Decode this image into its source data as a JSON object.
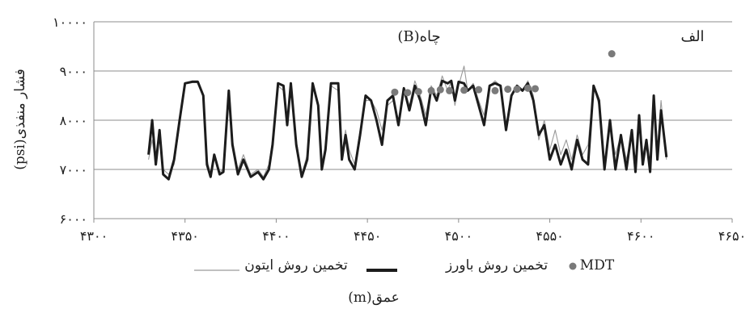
{
  "chart_data": {
    "type": "line",
    "title": "",
    "annotations": {
      "well": "چاه(B)",
      "panel": "الف"
    },
    "xlabel": "عمق(m)",
    "ylabel": "فشار منفذی(psi)",
    "xlim": [
      4300,
      4650
    ],
    "ylim": [
      6000,
      10000
    ],
    "x_ticks": [
      4300,
      4350,
      4400,
      4450,
      4500,
      4550,
      4600,
      4650
    ],
    "x_tick_labels": [
      "۴۳۰۰",
      "۴۳۵۰",
      "۴۴۰۰",
      "۴۴۵۰",
      "۴۵۰۰",
      "۴۵۵۰",
      "۴۶۰۰",
      "۴۶۵۰"
    ],
    "y_ticks": [
      6000,
      7000,
      8000,
      9000,
      10000
    ],
    "y_tick_labels": [
      "۶۰۰۰",
      "۷۰۰۰",
      "۸۰۰۰",
      "۹۰۰۰",
      "۱۰۰۰۰"
    ],
    "grid": true,
    "legend_position": "bottom",
    "series": [
      {
        "name": "تخمین روش ایتون",
        "kind": "line",
        "color": "#9a9a9a",
        "points": [
          [
            4330,
            7200
          ],
          [
            4332,
            7600
          ],
          [
            4334,
            7100
          ],
          [
            4336,
            7800
          ],
          [
            4338,
            7000
          ],
          [
            4341,
            6900
          ],
          [
            4344,
            7100
          ],
          [
            4347,
            7900
          ],
          [
            4350,
            8750
          ],
          [
            4354,
            8800
          ],
          [
            4357,
            8800
          ],
          [
            4360,
            8500
          ],
          [
            4362,
            7200
          ],
          [
            4364,
            6900
          ],
          [
            4366,
            7300
          ],
          [
            4369,
            6950
          ],
          [
            4371,
            7000
          ],
          [
            4374,
            8500
          ],
          [
            4376,
            7600
          ],
          [
            4379,
            7000
          ],
          [
            4382,
            7300
          ],
          [
            4386,
            6900
          ],
          [
            4390,
            7000
          ],
          [
            4393,
            6850
          ],
          [
            4396,
            7100
          ],
          [
            4398,
            7600
          ],
          [
            4401,
            8700
          ],
          [
            4404,
            8600
          ],
          [
            4406,
            8000
          ],
          [
            4408,
            8700
          ],
          [
            4411,
            7600
          ],
          [
            4414,
            6900
          ],
          [
            4417,
            7300
          ],
          [
            4420,
            8700
          ],
          [
            4423,
            8300
          ],
          [
            4425,
            7100
          ],
          [
            4427,
            7500
          ],
          [
            4430,
            8700
          ],
          [
            4434,
            8600
          ],
          [
            4436,
            7300
          ],
          [
            4438,
            7800
          ],
          [
            4440,
            7400
          ],
          [
            4443,
            7100
          ],
          [
            4446,
            7800
          ],
          [
            4449,
            8400
          ],
          [
            4452,
            8400
          ],
          [
            4455,
            8200
          ],
          [
            4458,
            7800
          ],
          [
            4461,
            8300
          ],
          [
            4464,
            8400
          ],
          [
            4467,
            8000
          ],
          [
            4470,
            8600
          ],
          [
            4473,
            8300
          ],
          [
            4476,
            8800
          ],
          [
            4479,
            8500
          ],
          [
            4482,
            8100
          ],
          [
            4485,
            8700
          ],
          [
            4488,
            8500
          ],
          [
            4491,
            8900
          ],
          [
            4494,
            8600
          ],
          [
            4496,
            8800
          ],
          [
            4498,
            8300
          ],
          [
            4500,
            8700
          ],
          [
            4503,
            9100
          ],
          [
            4505,
            8600
          ],
          [
            4508,
            8750
          ],
          [
            4511,
            8400
          ],
          [
            4514,
            8100
          ],
          [
            4517,
            8700
          ],
          [
            4520,
            8800
          ],
          [
            4523,
            8700
          ],
          [
            4526,
            7900
          ],
          [
            4529,
            8500
          ],
          [
            4532,
            8700
          ],
          [
            4535,
            8600
          ],
          [
            4538,
            8800
          ],
          [
            4541,
            8500
          ],
          [
            4544,
            7600
          ],
          [
            4547,
            8000
          ],
          [
            4550,
            7400
          ],
          [
            4553,
            7800
          ],
          [
            4556,
            7300
          ],
          [
            4559,
            7600
          ],
          [
            4562,
            7200
          ],
          [
            4565,
            7700
          ],
          [
            4568,
            7300
          ],
          [
            4571,
            7500
          ],
          [
            4574,
            8700
          ],
          [
            4577,
            8300
          ],
          [
            4580,
            7100
          ],
          [
            4583,
            7900
          ],
          [
            4586,
            7300
          ],
          [
            4589,
            7700
          ],
          [
            4592,
            7200
          ],
          [
            4595,
            7700
          ],
          [
            4597,
            7100
          ],
          [
            4599,
            8000
          ],
          [
            4601,
            7300
          ],
          [
            4603,
            7600
          ],
          [
            4605,
            7000
          ],
          [
            4607,
            8300
          ],
          [
            4609,
            7400
          ],
          [
            4611,
            8400
          ],
          [
            4614,
            7200
          ]
        ]
      },
      {
        "name": "تخمین روش باورز",
        "kind": "line",
        "color": "#1c1c1c",
        "points": [
          [
            4330,
            7300
          ],
          [
            4332,
            8000
          ],
          [
            4334,
            7100
          ],
          [
            4336,
            7800
          ],
          [
            4338,
            6900
          ],
          [
            4341,
            6800
          ],
          [
            4344,
            7200
          ],
          [
            4347,
            8000
          ],
          [
            4350,
            8750
          ],
          [
            4354,
            8780
          ],
          [
            4357,
            8780
          ],
          [
            4360,
            8500
          ],
          [
            4362,
            7100
          ],
          [
            4364,
            6850
          ],
          [
            4366,
            7300
          ],
          [
            4369,
            6900
          ],
          [
            4371,
            6950
          ],
          [
            4374,
            8600
          ],
          [
            4376,
            7500
          ],
          [
            4379,
            6900
          ],
          [
            4382,
            7200
          ],
          [
            4386,
            6850
          ],
          [
            4390,
            6950
          ],
          [
            4393,
            6800
          ],
          [
            4396,
            7000
          ],
          [
            4398,
            7500
          ],
          [
            4401,
            8750
          ],
          [
            4404,
            8700
          ],
          [
            4406,
            7900
          ],
          [
            4408,
            8750
          ],
          [
            4411,
            7500
          ],
          [
            4414,
            6850
          ],
          [
            4417,
            7200
          ],
          [
            4420,
            8750
          ],
          [
            4423,
            8300
          ],
          [
            4425,
            7000
          ],
          [
            4427,
            7400
          ],
          [
            4430,
            8750
          ],
          [
            4434,
            8750
          ],
          [
            4436,
            7200
          ],
          [
            4438,
            7700
          ],
          [
            4440,
            7200
          ],
          [
            4443,
            7000
          ],
          [
            4446,
            7700
          ],
          [
            4449,
            8500
          ],
          [
            4452,
            8400
          ],
          [
            4455,
            8000
          ],
          [
            4458,
            7500
          ],
          [
            4461,
            8400
          ],
          [
            4464,
            8500
          ],
          [
            4467,
            7900
          ],
          [
            4470,
            8650
          ],
          [
            4473,
            8200
          ],
          [
            4476,
            8700
          ],
          [
            4479,
            8400
          ],
          [
            4482,
            7900
          ],
          [
            4485,
            8650
          ],
          [
            4488,
            8400
          ],
          [
            4491,
            8800
          ],
          [
            4494,
            8750
          ],
          [
            4496,
            8800
          ],
          [
            4498,
            8400
          ],
          [
            4500,
            8780
          ],
          [
            4503,
            8750
          ],
          [
            4505,
            8600
          ],
          [
            4508,
            8700
          ],
          [
            4511,
            8300
          ],
          [
            4514,
            7900
          ],
          [
            4517,
            8700
          ],
          [
            4520,
            8750
          ],
          [
            4523,
            8700
          ],
          [
            4526,
            7800
          ],
          [
            4529,
            8500
          ],
          [
            4532,
            8700
          ],
          [
            4535,
            8600
          ],
          [
            4538,
            8750
          ],
          [
            4541,
            8400
          ],
          [
            4544,
            7700
          ],
          [
            4547,
            7900
          ],
          [
            4550,
            7200
          ],
          [
            4553,
            7500
          ],
          [
            4556,
            7100
          ],
          [
            4559,
            7400
          ],
          [
            4562,
            7000
          ],
          [
            4565,
            7600
          ],
          [
            4568,
            7200
          ],
          [
            4571,
            7100
          ],
          [
            4574,
            8700
          ],
          [
            4577,
            8400
          ],
          [
            4580,
            7000
          ],
          [
            4583,
            8000
          ],
          [
            4586,
            7000
          ],
          [
            4589,
            7700
          ],
          [
            4592,
            7000
          ],
          [
            4595,
            7800
          ],
          [
            4597,
            6950
          ],
          [
            4599,
            8100
          ],
          [
            4601,
            7100
          ],
          [
            4603,
            7600
          ],
          [
            4605,
            6950
          ],
          [
            4607,
            8500
          ],
          [
            4609,
            7200
          ],
          [
            4611,
            8200
          ],
          [
            4614,
            7250
          ]
        ]
      },
      {
        "name": "MDT",
        "kind": "scatter",
        "color": "#7a7a7a",
        "points": [
          [
            4465,
            8570
          ],
          [
            4472,
            8560
          ],
          [
            4478,
            8580
          ],
          [
            4485,
            8600
          ],
          [
            4490,
            8620
          ],
          [
            4495,
            8600
          ],
          [
            4503,
            8610
          ],
          [
            4511,
            8620
          ],
          [
            4520,
            8600
          ],
          [
            4527,
            8630
          ],
          [
            4532,
            8630
          ],
          [
            4538,
            8650
          ],
          [
            4542,
            8640
          ],
          [
            4584,
            9350
          ]
        ]
      }
    ]
  },
  "legend": {
    "mdt": "MDT",
    "bowers": "تخمین روش باورز",
    "eaton": "تخمین روش ایتون"
  }
}
